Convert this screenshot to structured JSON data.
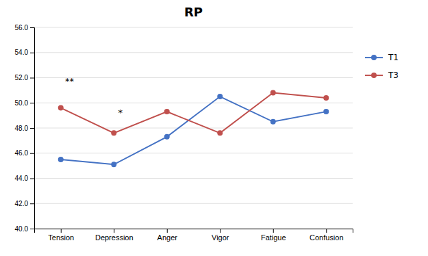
{
  "chart_data": {
    "type": "line",
    "title": "RP",
    "categories": [
      "Tension",
      "Depression",
      "Anger",
      "Vigor",
      "Fatigue",
      "Confusion"
    ],
    "series": [
      {
        "name": "T1",
        "color": "#4472C4",
        "values": [
          45.5,
          45.1,
          47.3,
          50.5,
          48.5,
          49.3
        ]
      },
      {
        "name": "T3",
        "color": "#C0504D",
        "values": [
          49.6,
          47.6,
          49.3,
          47.6,
          50.8,
          50.4
        ]
      }
    ],
    "marker": "circle",
    "ylim": [
      40.0,
      56.0
    ],
    "yticks": [
      {
        "value": 40,
        "label": "40.0"
      },
      {
        "value": 42,
        "label": "42.0"
      },
      {
        "value": 44,
        "label": "44.0"
      },
      {
        "value": 46,
        "label": "46.0"
      },
      {
        "value": 48,
        "label": "48.0"
      },
      {
        "value": 50,
        "label": "50.0"
      },
      {
        "value": 52,
        "label": "52.0"
      },
      {
        "value": 54,
        "label": "54.0"
      },
      {
        "value": 56,
        "label": "56.0"
      }
    ],
    "annotations": [
      {
        "text": "**",
        "x": 0.08,
        "y": 51.5
      },
      {
        "text": "*",
        "x": 1.08,
        "y": 49.0
      }
    ],
    "grid": true,
    "legend": "right"
  }
}
